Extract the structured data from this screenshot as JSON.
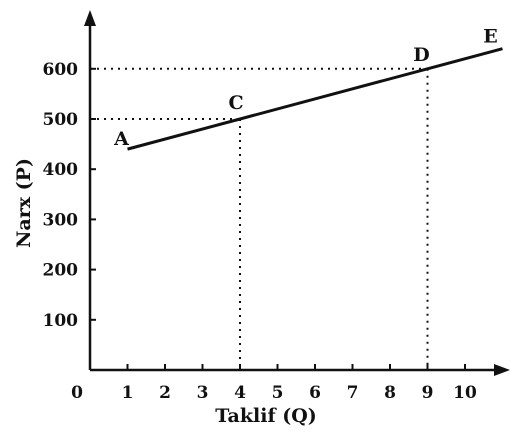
{
  "chart_data": {
    "type": "line",
    "xlabel": "Taklif (Q)",
    "ylabel": "Narx (P)",
    "origin_label": "0",
    "xlim": [
      0,
      11
    ],
    "ylim": [
      0,
      700
    ],
    "x_ticks": [
      "1",
      "2",
      "3",
      "4",
      "5",
      "6",
      "7",
      "8",
      "9",
      "10"
    ],
    "y_ticks": [
      "100",
      "200",
      "300",
      "400",
      "500",
      "600"
    ],
    "grid": false,
    "series": [
      {
        "points": [
          {
            "x": 1,
            "y": 440,
            "label": "A"
          },
          {
            "x": 4,
            "y": 500,
            "label": "C"
          },
          {
            "x": 9,
            "y": 600,
            "label": "D"
          },
          {
            "x": 11,
            "y": 640,
            "label": "E"
          }
        ]
      }
    ],
    "reference_lines": [
      {
        "point": "C",
        "x": 4,
        "y": 500
      },
      {
        "point": "D",
        "x": 9,
        "y": 600
      }
    ],
    "colors": {
      "ink": "#111111",
      "background": "#ffffff"
    }
  }
}
